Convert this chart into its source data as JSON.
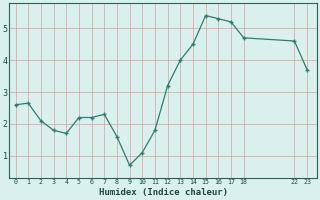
{
  "x": [
    0,
    1,
    2,
    3,
    4,
    5,
    6,
    7,
    8,
    9,
    10,
    11,
    12,
    13,
    14,
    15,
    16,
    17,
    18,
    22,
    23
  ],
  "y": [
    2.6,
    2.65,
    2.1,
    1.8,
    1.7,
    2.2,
    2.2,
    2.3,
    1.6,
    0.7,
    1.1,
    1.8,
    3.2,
    4.0,
    4.5,
    5.4,
    5.3,
    5.2,
    4.7,
    4.6,
    3.7
  ],
  "xtick_positions": [
    0,
    1,
    2,
    3,
    4,
    5,
    6,
    7,
    8,
    9,
    10,
    11,
    12,
    13,
    14,
    15,
    16,
    17,
    18,
    22,
    23
  ],
  "xtick_labels": [
    "0",
    "1",
    "2",
    "3",
    "4",
    "5",
    "6",
    "7",
    "8",
    "9",
    "10",
    "11",
    "12",
    "13",
    "14",
    "15",
    "16",
    "17",
    "18",
    "22",
    "23"
  ],
  "yticks": [
    1,
    2,
    3,
    4,
    5
  ],
  "xlabel": "Humidex (Indice chaleur)",
  "ylim": [
    0.3,
    5.8
  ],
  "xlim": [
    -0.5,
    23.8
  ],
  "line_color": "#2e7d6e",
  "marker_color": "#2e7d6e",
  "bg_color": "#daf0ec",
  "grid_color_h": "#d4a0a0",
  "grid_color_v": "#d4a0a0",
  "axis_bg": "#daf0ec",
  "figsize": [
    3.2,
    2.0
  ],
  "dpi": 100
}
